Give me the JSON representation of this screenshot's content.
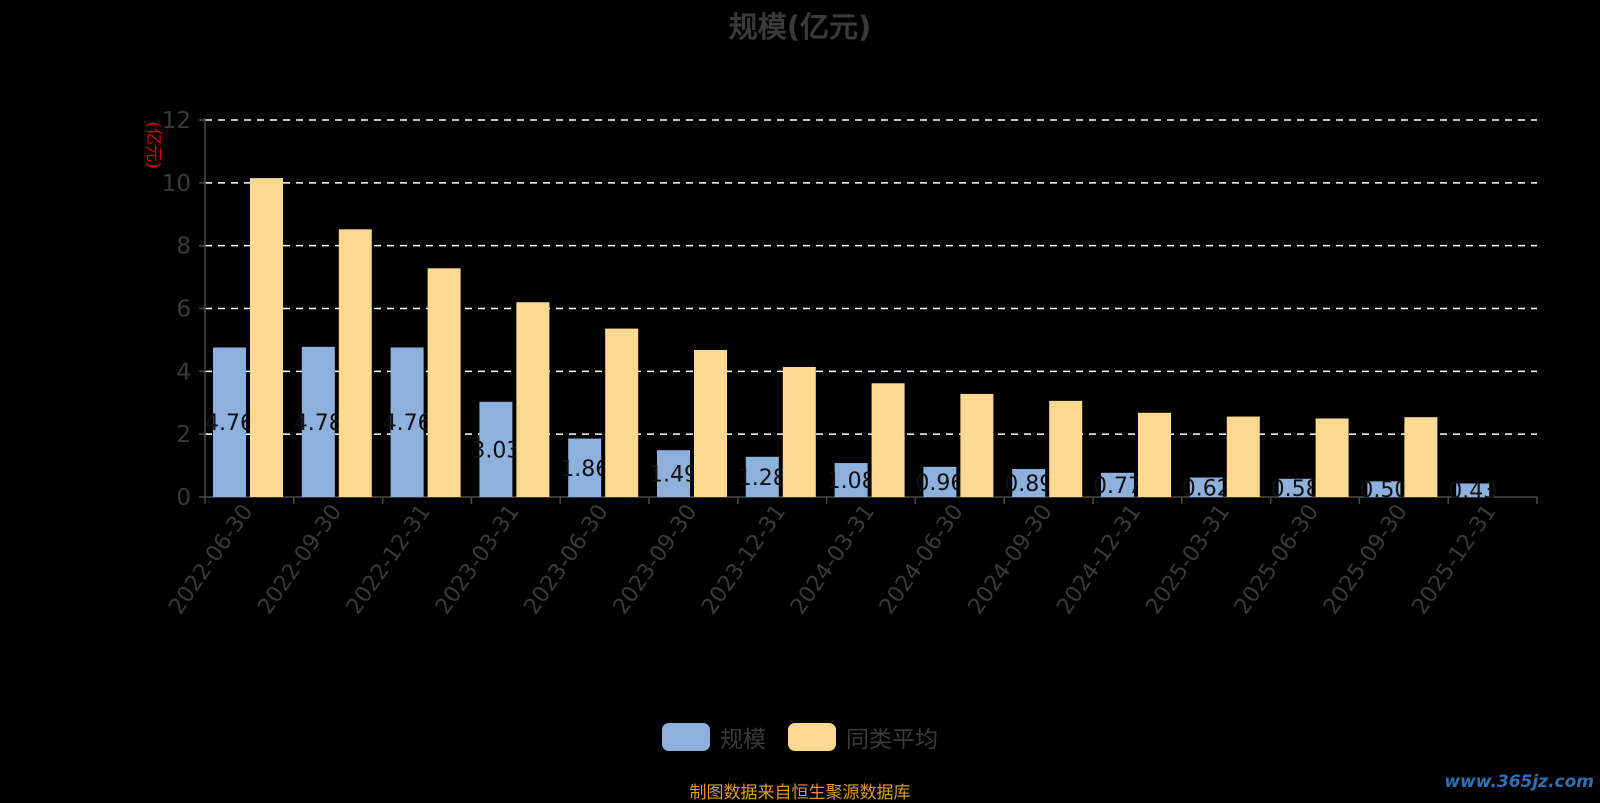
{
  "chart_data": {
    "type": "bar",
    "title": "规模(亿元)",
    "ylabel": "(亿元)",
    "xlabel": "",
    "ylim": [
      0,
      12
    ],
    "yticks": [
      0,
      2,
      4,
      6,
      8,
      10,
      12
    ],
    "grid": true,
    "legend_position": "bottom-center",
    "categories": [
      "2022-06-30",
      "2022-09-30",
      "2022-12-31",
      "2023-03-31",
      "2023-06-30",
      "2023-09-30",
      "2023-12-31",
      "2024-03-31",
      "2024-06-30",
      "2024-09-30",
      "2024-12-31",
      "2025-03-31",
      "2025-06-30",
      "2025-09-30",
      "2025-12-31"
    ],
    "series": [
      {
        "name": "规模",
        "color": "#8eb0dd",
        "values": [
          4.76,
          4.78,
          4.76,
          3.03,
          1.86,
          1.49,
          1.28,
          1.08,
          0.96,
          0.89,
          0.77,
          0.62,
          0.58,
          0.5,
          0.43
        ],
        "data_labels": [
          "4.76",
          "4.78",
          "4.76",
          "3.03",
          "1.86",
          "1.49",
          "1.28",
          "1.08",
          "0.96",
          "0.89",
          "0.77",
          "0.62",
          "0.58",
          "0.50",
          "0.43"
        ]
      },
      {
        "name": "同类平均",
        "color": "#ffd990",
        "values": [
          10.15,
          8.52,
          7.28,
          6.2,
          5.36,
          4.68,
          4.14,
          3.62,
          3.28,
          3.06,
          2.68,
          2.56,
          2.5,
          2.54,
          null
        ]
      }
    ]
  },
  "source_note": "制图数据来自恒生聚源数据库",
  "watermark": "www.365jz.com"
}
